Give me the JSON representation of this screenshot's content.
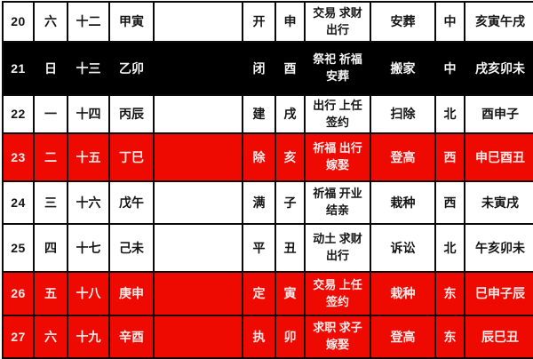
{
  "colors": {
    "highlight_red": "#ee0a00",
    "highlight_black": "#000000",
    "border": "#0a0a0a"
  },
  "table": {
    "column_keys": [
      "date",
      "weekday",
      "lunar",
      "ganzhi",
      "extra",
      "officer",
      "clash",
      "auspicious",
      "activity",
      "direction",
      "hours"
    ],
    "rows": [
      {
        "type": "normal",
        "date": "20",
        "weekday": "六",
        "lunar": "十二",
        "ganzhi": "甲寅",
        "extra": "",
        "officer": "开",
        "clash": "申",
        "auspicious": "交易 求财 出行",
        "activity": "安葬",
        "direction": "中",
        "hours": "亥寅午戌"
      },
      {
        "type": "black",
        "date": "21",
        "weekday": "日",
        "lunar": "十三",
        "ganzhi": "乙卯",
        "extra": "",
        "officer": "闭",
        "clash": "酉",
        "auspicious": "祭祀 祈福 安葬",
        "activity": "搬家",
        "direction": "中",
        "hours": "戌亥卯未"
      },
      {
        "type": "normal",
        "date": "22",
        "weekday": "一",
        "lunar": "十四",
        "ganzhi": "丙辰",
        "extra": "",
        "officer": "建",
        "clash": "戌",
        "auspicious": "出行 上任 签约",
        "activity": "扫除",
        "direction": "北",
        "hours": "酉申子"
      },
      {
        "type": "red",
        "date": "23",
        "weekday": "二",
        "lunar": "十五",
        "ganzhi": "丁巳",
        "extra": "",
        "officer": "除",
        "clash": "亥",
        "auspicious": "祈福 出行 嫁娶",
        "activity": "登高",
        "direction": "西",
        "hours": "申巳酉丑"
      },
      {
        "type": "normal",
        "date": "24",
        "weekday": "三",
        "lunar": "十六",
        "ganzhi": "戊午",
        "extra": "",
        "officer": "满",
        "clash": "子",
        "auspicious": "祈福 开业 结亲",
        "activity": "栽种",
        "direction": "西",
        "hours": "未寅戌"
      },
      {
        "type": "normal",
        "date": "25",
        "weekday": "四",
        "lunar": "十七",
        "ganzhi": "己未",
        "extra": "",
        "officer": "平",
        "clash": "丑",
        "auspicious": "动土 求财 出行",
        "activity": "诉讼",
        "direction": "北",
        "hours": "午亥卯未"
      },
      {
        "type": "red",
        "date": "26",
        "weekday": "五",
        "lunar": "十八",
        "ganzhi": "庚申",
        "extra": "",
        "officer": "定",
        "clash": "寅",
        "auspicious": "交易 上任 签约",
        "activity": "栽种",
        "direction": "东",
        "hours": "巳申子辰"
      },
      {
        "type": "red",
        "date": "27",
        "weekday": "六",
        "lunar": "十九",
        "ganzhi": "辛酉",
        "extra": "",
        "officer": "执",
        "clash": "卯",
        "auspicious": "求职 求子 嫁娶",
        "activity": "登高",
        "direction": "东",
        "hours": "辰巳丑"
      }
    ]
  }
}
